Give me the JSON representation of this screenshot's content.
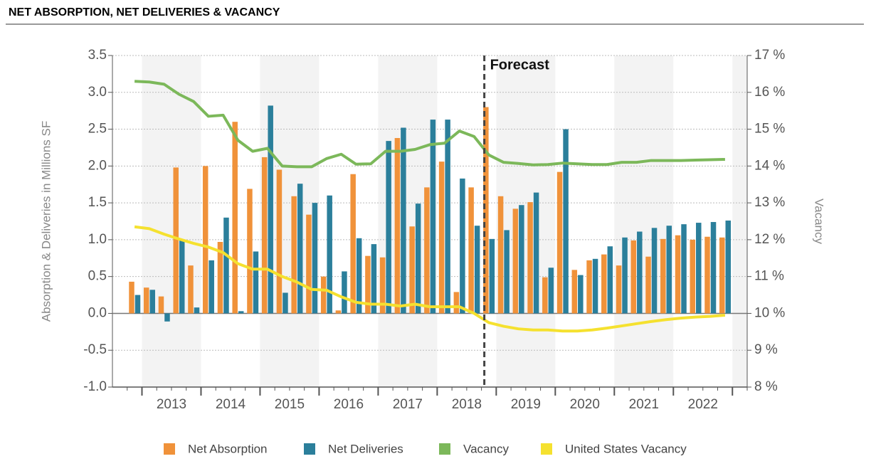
{
  "chart_data": {
    "type": "bar-line",
    "title": "NET ABSORPTION, NET DELIVERIES & VACANCY",
    "y_label": "Absorption & Deliveries in Millions SF",
    "y2_label": "Vacancy",
    "annotation": {
      "text": "Forecast",
      "index": 24
    },
    "years": [
      "2013",
      "2014",
      "2015",
      "2016",
      "2017",
      "2018",
      "2019",
      "2020",
      "2021",
      "2022"
    ],
    "categories": [
      null,
      null,
      null,
      null,
      null,
      null,
      null,
      null,
      null,
      null,
      null,
      null,
      null,
      null,
      null,
      null,
      null,
      null,
      null,
      null,
      null,
      null,
      null,
      null,
      null,
      null,
      null,
      null,
      null,
      null,
      null,
      null,
      null,
      null,
      null,
      null,
      null,
      null,
      null,
      null,
      null
    ],
    "ylim": [
      -1,
      3.5
    ],
    "yticks": [
      {
        "value": -1,
        "label": "-1.0"
      },
      -0.5,
      {
        "value": 0,
        "label": "0.0"
      },
      0.5,
      {
        "value": 1,
        "label": "1.0"
      },
      1.5,
      {
        "value": 2,
        "label": "2.0"
      },
      2.5,
      {
        "value": 3,
        "label": "3.0"
      },
      3.5
    ],
    "y2lim": [
      8,
      17
    ],
    "y2ticks": [
      {
        "value": 8,
        "label": "8 %"
      },
      {
        "value": 9,
        "label": "9 %"
      },
      {
        "value": 10,
        "label": "10 %"
      },
      {
        "value": 11,
        "label": "11 %"
      },
      {
        "value": 12,
        "label": "12 %"
      },
      {
        "value": 13,
        "label": "13 %"
      },
      {
        "value": 14,
        "label": "14 %"
      },
      {
        "value": 15,
        "label": "15 %"
      },
      {
        "value": 16,
        "label": "16 %"
      },
      {
        "value": 17,
        "label": "17 %"
      }
    ],
    "grid": true,
    "series": [
      {
        "name": "Net Absorption",
        "kind": "bar",
        "color": "#f0923a",
        "values": [
          0.43,
          0.35,
          0.23,
          1.98,
          0.65,
          2.0,
          0.97,
          2.6,
          1.69,
          2.12,
          1.95,
          1.59,
          1.34,
          0.5,
          0.04,
          1.89,
          0.78,
          0.76,
          2.38,
          1.18,
          1.71,
          2.06,
          0.29,
          1.71,
          2.8,
          1.59,
          1.42,
          1.51,
          0.49,
          1.92,
          0.59,
          0.72,
          0.8,
          0.65,
          0.99,
          0.77,
          1.01,
          1.06,
          1.0,
          1.04,
          1.03
        ]
      },
      {
        "name": "Net Deliveries",
        "kind": "bar",
        "color": "#2b7f9b",
        "values": [
          0.25,
          0.32,
          -0.11,
          0.99,
          0.08,
          0.72,
          1.3,
          0.03,
          0.84,
          2.82,
          0.28,
          1.76,
          1.5,
          1.6,
          0.57,
          1.02,
          0.94,
          2.34,
          2.52,
          1.49,
          2.63,
          2.63,
          1.83,
          1.19,
          1.01,
          1.13,
          1.47,
          1.64,
          0.62,
          2.5,
          0.52,
          0.74,
          0.91,
          1.03,
          1.11,
          1.16,
          1.19,
          1.21,
          1.23,
          1.24,
          1.26
        ]
      },
      {
        "name": "Vacancy",
        "kind": "line",
        "axis": "y2",
        "color": "#7cb85a",
        "values": [
          16.3,
          16.28,
          16.22,
          15.95,
          15.75,
          15.35,
          15.38,
          14.7,
          14.4,
          14.48,
          14.0,
          13.98,
          13.98,
          14.2,
          14.32,
          14.05,
          14.06,
          14.4,
          14.4,
          14.45,
          14.58,
          14.62,
          14.95,
          14.8,
          14.3,
          14.1,
          14.07,
          14.03,
          14.04,
          14.08,
          14.06,
          14.04,
          14.04,
          14.1,
          14.1,
          14.15,
          14.15,
          14.15,
          14.16,
          14.17,
          14.18
        ]
      },
      {
        "name": "United States Vacancy",
        "kind": "line",
        "axis": "y2",
        "color": "#f5e12f",
        "values": [
          12.35,
          12.3,
          12.15,
          12.02,
          11.9,
          11.8,
          11.65,
          11.35,
          11.2,
          11.2,
          11.0,
          10.85,
          10.65,
          10.63,
          10.45,
          10.3,
          10.25,
          10.25,
          10.2,
          10.25,
          10.18,
          10.18,
          10.18,
          10.0,
          9.75,
          9.65,
          9.58,
          9.55,
          9.55,
          9.52,
          9.52,
          9.55,
          9.6,
          9.66,
          9.72,
          9.78,
          9.83,
          9.87,
          9.9,
          9.92,
          9.95
        ]
      }
    ]
  }
}
